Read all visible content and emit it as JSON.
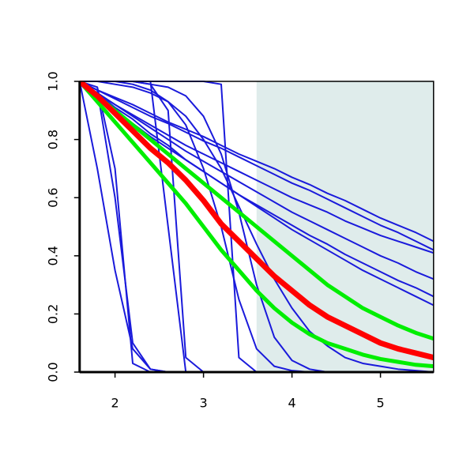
{
  "chart_data": {
    "type": "line",
    "x": [
      1.6,
      1.8,
      2.0,
      2.2,
      2.4,
      2.6,
      2.8,
      3.0,
      3.2,
      3.4,
      3.6,
      3.8,
      4.0,
      4.2,
      4.4,
      4.6,
      4.8,
      5.0,
      5.2,
      5.4,
      5.6
    ],
    "xlim": [
      1.6,
      5.6
    ],
    "xticks": [
      2,
      3,
      4,
      5
    ],
    "ylim": [
      0,
      1
    ],
    "yticks": [
      {
        "value": 0,
        "label": "0.0"
      },
      {
        "value": 0.2,
        "label": "0.2"
      },
      {
        "value": 0.4,
        "label": "0.4"
      },
      {
        "value": 0.6,
        "label": "0.6"
      },
      {
        "value": 0.8,
        "label": "0.8"
      },
      {
        "value": 1,
        "label": "1.0"
      }
    ],
    "shaded_region": {
      "xlim": [
        3.6,
        5.6
      ],
      "color": "#dfeceb"
    },
    "series": [
      {
        "color": "#1a1adb",
        "values": [
          1,
          0.7,
          0.35,
          0.08,
          0.01,
          0,
          0,
          0,
          0,
          0,
          0,
          0,
          0,
          0,
          0,
          0,
          0,
          0,
          0,
          0,
          0
        ]
      },
      {
        "color": "#1a1adb",
        "values": [
          1,
          0.98,
          0.7,
          0.03,
          0,
          0,
          0,
          0,
          0,
          0,
          0,
          0,
          0,
          0,
          0,
          0,
          0,
          0,
          0,
          0,
          0
        ]
      },
      {
        "color": "#1a1adb",
        "values": [
          1,
          0.97,
          0.6,
          0.1,
          0.01,
          0,
          0,
          0,
          0,
          0,
          0,
          0,
          0,
          0,
          0,
          0,
          0,
          0,
          0,
          0,
          0
        ]
      },
      {
        "color": "#1a1adb",
        "values": [
          1,
          1,
          1,
          1,
          1,
          0.5,
          0,
          0,
          0,
          0,
          0,
          0,
          0,
          0,
          0,
          0,
          0,
          0,
          0,
          0,
          0
        ]
      },
      {
        "color": "#1a1adb",
        "values": [
          1,
          1,
          1,
          1,
          0.99,
          0.9,
          0.05,
          0,
          0,
          0,
          0,
          0,
          0,
          0,
          0,
          0,
          0,
          0,
          0,
          0,
          0
        ]
      },
      {
        "color": "#1a1adb",
        "values": [
          1,
          1,
          1,
          1,
          1,
          1,
          1,
          1,
          0.99,
          0.05,
          0,
          0,
          0,
          0,
          0,
          0,
          0,
          0,
          0,
          0,
          0
        ]
      },
      {
        "color": "#1a1adb",
        "values": [
          1,
          1,
          1,
          0.99,
          0.97,
          0.93,
          0.85,
          0.7,
          0.5,
          0.25,
          0.08,
          0.02,
          0.005,
          0,
          0,
          0,
          0,
          0,
          0,
          0,
          0
        ]
      },
      {
        "color": "#1a1adb",
        "values": [
          1,
          1,
          1,
          1,
          0.99,
          0.98,
          0.95,
          0.88,
          0.75,
          0.55,
          0.3,
          0.12,
          0.04,
          0.01,
          0,
          0,
          0,
          0,
          0,
          0,
          0
        ]
      },
      {
        "color": "#1a1adb",
        "values": [
          1,
          1,
          0.99,
          0.98,
          0.96,
          0.93,
          0.88,
          0.8,
          0.7,
          0.57,
          0.44,
          0.32,
          0.22,
          0.14,
          0.09,
          0.05,
          0.03,
          0.02,
          0.01,
          0.005,
          0
        ]
      },
      {
        "color": "#1a1adb",
        "values": [
          1,
          0.97,
          0.945,
          0.92,
          0.89,
          0.86,
          0.835,
          0.81,
          0.78,
          0.75,
          0.725,
          0.7,
          0.67,
          0.645,
          0.615,
          0.59,
          0.56,
          0.53,
          0.505,
          0.48,
          0.45
        ]
      },
      {
        "color": "#1a1adb",
        "values": [
          1,
          0.97,
          0.94,
          0.91,
          0.88,
          0.855,
          0.825,
          0.795,
          0.77,
          0.74,
          0.71,
          0.68,
          0.65,
          0.625,
          0.595,
          0.565,
          0.535,
          0.505,
          0.48,
          0.45,
          0.42
        ]
      },
      {
        "color": "#1a1adb",
        "values": [
          1,
          0.96,
          0.92,
          0.885,
          0.85,
          0.815,
          0.78,
          0.75,
          0.72,
          0.69,
          0.66,
          0.63,
          0.6,
          0.575,
          0.55,
          0.52,
          0.495,
          0.47,
          0.45,
          0.43,
          0.41
        ]
      },
      {
        "color": "#1a1adb",
        "values": [
          1,
          0.96,
          0.92,
          0.88,
          0.84,
          0.8,
          0.76,
          0.725,
          0.69,
          0.655,
          0.62,
          0.585,
          0.55,
          0.52,
          0.49,
          0.46,
          0.43,
          0.4,
          0.375,
          0.345,
          0.32
        ]
      },
      {
        "color": "#1a1adb",
        "values": [
          1,
          0.96,
          0.91,
          0.87,
          0.82,
          0.78,
          0.73,
          0.69,
          0.65,
          0.61,
          0.57,
          0.53,
          0.49,
          0.455,
          0.42,
          0.385,
          0.35,
          0.32,
          0.29,
          0.26,
          0.23
        ]
      },
      {
        "color": "#1a1adb",
        "values": [
          1,
          0.95,
          0.9,
          0.855,
          0.81,
          0.77,
          0.73,
          0.69,
          0.65,
          0.61,
          0.575,
          0.54,
          0.505,
          0.47,
          0.44,
          0.405,
          0.375,
          0.345,
          0.315,
          0.29,
          0.26
        ]
      },
      {
        "color": "#00ee00",
        "values": [
          1,
          0.95,
          0.9,
          0.85,
          0.8,
          0.75,
          0.7,
          0.65,
          0.6,
          0.55,
          0.5,
          0.45,
          0.4,
          0.35,
          0.3,
          0.26,
          0.22,
          0.19,
          0.16,
          0.135,
          0.115
        ]
      },
      {
        "color": "#00ee00",
        "values": [
          1,
          0.93,
          0.86,
          0.79,
          0.72,
          0.65,
          0.58,
          0.5,
          0.42,
          0.35,
          0.28,
          0.22,
          0.17,
          0.13,
          0.1,
          0.08,
          0.06,
          0.045,
          0.035,
          0.025,
          0.02
        ]
      },
      {
        "color": "#ff0000",
        "values": [
          1,
          0.95,
          0.89,
          0.83,
          0.77,
          0.72,
          0.66,
          0.59,
          0.51,
          0.45,
          0.39,
          0.33,
          0.28,
          0.23,
          0.19,
          0.16,
          0.13,
          0.1,
          0.08,
          0.065,
          0.05
        ]
      }
    ]
  }
}
